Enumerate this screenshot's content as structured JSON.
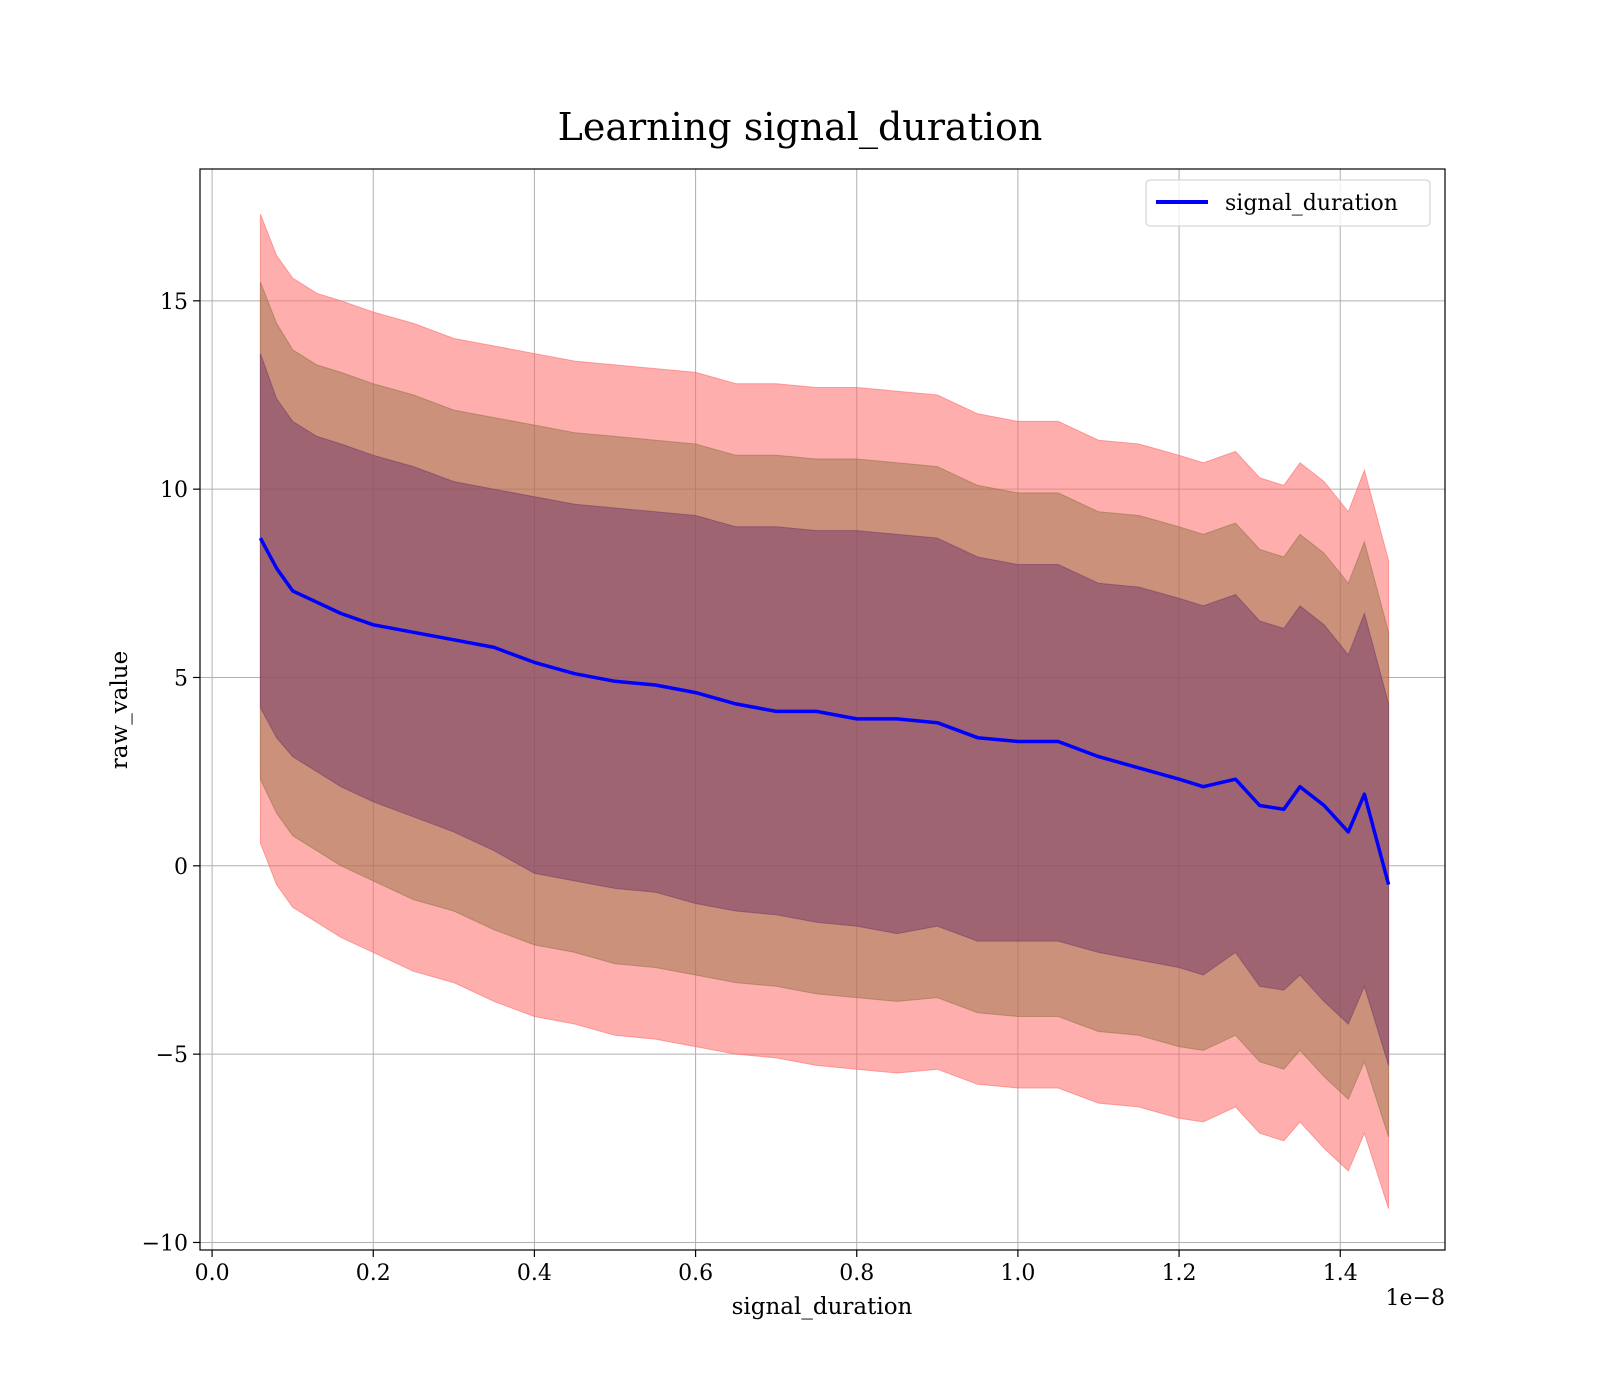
{
  "chart_data": {
    "type": "line",
    "title": "Learning signal_duration",
    "xlabel": "signal_duration",
    "ylabel": "raw_value",
    "x_offset_text": "1e−8",
    "xlim": [
      -0.015,
      1.53
    ],
    "ylim": [
      -10.2,
      18.5
    ],
    "x_ticks": [
      0.0,
      0.2,
      0.4,
      0.6,
      0.8,
      1.0,
      1.2,
      1.4
    ],
    "x_tick_labels": [
      "0.0",
      "0.2",
      "0.4",
      "0.6",
      "0.8",
      "1.0",
      "1.2",
      "1.4"
    ],
    "y_ticks": [
      -10,
      -5,
      0,
      5,
      10,
      15
    ],
    "y_tick_labels": [
      "−10",
      "−5",
      "0",
      "5",
      "10",
      "15"
    ],
    "grid": true,
    "legend_position": "top-right",
    "colors": {
      "line": "#0000ff",
      "band_outer": "#ff000059",
      "band_middle": "#8b6f3d",
      "band_inner": "#7a3f6b"
    },
    "series": [
      {
        "name": "signal_duration",
        "x": [
          0.06,
          0.08,
          0.1,
          0.13,
          0.16,
          0.2,
          0.25,
          0.3,
          0.35,
          0.4,
          0.45,
          0.5,
          0.55,
          0.6,
          0.65,
          0.7,
          0.75,
          0.8,
          0.85,
          0.9,
          0.95,
          1.0,
          1.05,
          1.1,
          1.15,
          1.2,
          1.23,
          1.27,
          1.3,
          1.33,
          1.35,
          1.38,
          1.41,
          1.43,
          1.46
        ],
        "values": [
          8.7,
          7.9,
          7.3,
          7.0,
          6.7,
          6.4,
          6.2,
          6.0,
          5.8,
          5.4,
          5.1,
          4.9,
          4.8,
          4.6,
          4.3,
          4.1,
          4.1,
          3.9,
          3.9,
          3.8,
          3.4,
          3.3,
          3.3,
          2.9,
          2.6,
          2.3,
          2.1,
          2.3,
          1.6,
          1.5,
          2.1,
          1.6,
          0.9,
          1.9,
          -0.5
        ],
        "band_1sigma_low": [
          4.2,
          3.4,
          2.9,
          2.5,
          2.1,
          1.7,
          1.3,
          0.9,
          0.4,
          -0.2,
          -0.4,
          -0.6,
          -0.7,
          -1.0,
          -1.2,
          -1.3,
          -1.5,
          -1.6,
          -1.8,
          -1.6,
          -2.0,
          -2.0,
          -2.0,
          -2.3,
          -2.5,
          -2.7,
          -2.9,
          -2.3,
          -3.2,
          -3.3,
          -2.9,
          -3.6,
          -4.2,
          -3.2,
          -5.3
        ],
        "band_1sigma_high": [
          13.6,
          12.4,
          11.8,
          11.4,
          11.2,
          10.9,
          10.6,
          10.2,
          10.0,
          9.8,
          9.6,
          9.5,
          9.4,
          9.3,
          9.0,
          9.0,
          8.9,
          8.9,
          8.8,
          8.7,
          8.2,
          8.0,
          8.0,
          7.5,
          7.4,
          7.1,
          6.9,
          7.2,
          6.5,
          6.3,
          6.9,
          6.4,
          5.6,
          6.7,
          4.3
        ],
        "band_2sigma_low": [
          2.3,
          1.4,
          0.8,
          0.4,
          0.0,
          -0.4,
          -0.9,
          -1.2,
          -1.7,
          -2.1,
          -2.3,
          -2.6,
          -2.7,
          -2.9,
          -3.1,
          -3.2,
          -3.4,
          -3.5,
          -3.6,
          -3.5,
          -3.9,
          -4.0,
          -4.0,
          -4.4,
          -4.5,
          -4.8,
          -4.9,
          -4.5,
          -5.2,
          -5.4,
          -4.9,
          -5.6,
          -6.2,
          -5.2,
          -7.2
        ],
        "band_2sigma_high": [
          15.5,
          14.4,
          13.7,
          13.3,
          13.1,
          12.8,
          12.5,
          12.1,
          11.9,
          11.7,
          11.5,
          11.4,
          11.3,
          11.2,
          10.9,
          10.9,
          10.8,
          10.8,
          10.7,
          10.6,
          10.1,
          9.9,
          9.9,
          9.4,
          9.3,
          9.0,
          8.8,
          9.1,
          8.4,
          8.2,
          8.8,
          8.3,
          7.5,
          8.6,
          6.2
        ],
        "band_3sigma_low": [
          0.6,
          -0.5,
          -1.1,
          -1.5,
          -1.9,
          -2.3,
          -2.8,
          -3.1,
          -3.6,
          -4.0,
          -4.2,
          -4.5,
          -4.6,
          -4.8,
          -5.0,
          -5.1,
          -5.3,
          -5.4,
          -5.5,
          -5.4,
          -5.8,
          -5.9,
          -5.9,
          -6.3,
          -6.4,
          -6.7,
          -6.8,
          -6.4,
          -7.1,
          -7.3,
          -6.8,
          -7.5,
          -8.1,
          -7.1,
          -9.1
        ],
        "band_3sigma_high": [
          17.3,
          16.2,
          15.6,
          15.2,
          15.0,
          14.7,
          14.4,
          14.0,
          13.8,
          13.6,
          13.4,
          13.3,
          13.2,
          13.1,
          12.8,
          12.8,
          12.7,
          12.7,
          12.6,
          12.5,
          12.0,
          11.8,
          11.8,
          11.3,
          11.2,
          10.9,
          10.7,
          11.0,
          10.3,
          10.1,
          10.7,
          10.2,
          9.4,
          10.5,
          8.1
        ]
      }
    ]
  }
}
